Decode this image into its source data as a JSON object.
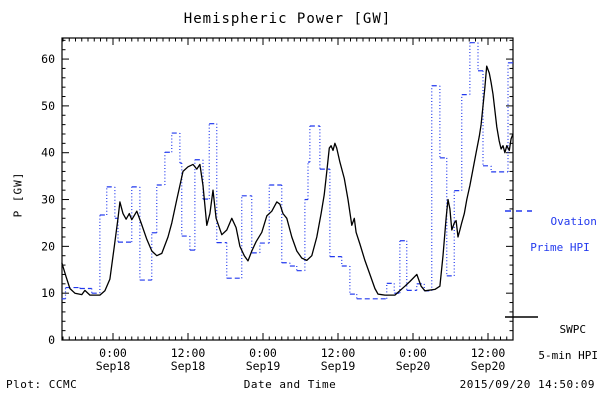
{
  "title": "Hemispheric Power [GW]",
  "colors": {
    "ovation_blue": "#2239ee",
    "swpc_black": "#000000",
    "frame": "#000000"
  },
  "axes": {
    "ylabel": "P [GW]",
    "xlabel": "Date and Time",
    "y_ticks": [
      0,
      10,
      20,
      30,
      40,
      50,
      60
    ],
    "y_minor_step": 2,
    "x_minor_step_hours": 1,
    "x_major_ticks": [
      {
        "t": 0,
        "time": "0:00",
        "date": "Sep18"
      },
      {
        "t": 12,
        "time": "12:00",
        "date": "Sep18"
      },
      {
        "t": 24,
        "time": "0:00",
        "date": "Sep19"
      },
      {
        "t": 36,
        "time": "12:00",
        "date": "Sep19"
      },
      {
        "t": 48,
        "time": "0:00",
        "date": "Sep20"
      },
      {
        "t": 60,
        "time": "12:00",
        "date": "Sep20"
      }
    ]
  },
  "chart_data": {
    "type": "line",
    "title": "Hemispheric Power [GW]",
    "xlabel": "Date and Time",
    "ylabel": "P [GW]",
    "x_unit": "hours since 2015-09-18 00:00 UT",
    "xlim": [
      -8.16,
      64
    ],
    "ylim": [
      0,
      64.5
    ],
    "grid": false,
    "legend_position": "right-outside",
    "series": [
      {
        "name": "Ovation Prime HPI",
        "style": "step-dashed",
        "color": "#2239ee",
        "points": [
          [
            -8.2,
            8.8
          ],
          [
            -7.6,
            11.2
          ],
          [
            -5.3,
            11.0
          ],
          [
            -3.4,
            10.0
          ],
          [
            -2.1,
            26.7
          ],
          [
            -1.0,
            32.7
          ],
          [
            0.3,
            26.0
          ],
          [
            0.8,
            20.9
          ],
          [
            3.0,
            32.7
          ],
          [
            4.3,
            12.8
          ],
          [
            6.2,
            22.9
          ],
          [
            7.0,
            33.1
          ],
          [
            8.3,
            40.1
          ],
          [
            9.4,
            44.2
          ],
          [
            10.7,
            37.8
          ],
          [
            11.0,
            22.2
          ],
          [
            12.3,
            19.2
          ],
          [
            13.1,
            38.5
          ],
          [
            14.4,
            30.1
          ],
          [
            15.4,
            46.2
          ],
          [
            16.6,
            20.8
          ],
          [
            18.2,
            13.2
          ],
          [
            20.6,
            30.8
          ],
          [
            22.2,
            18.6
          ],
          [
            23.5,
            20.7
          ],
          [
            25.0,
            33.1
          ],
          [
            27.0,
            16.5
          ],
          [
            28.3,
            15.8
          ],
          [
            29.4,
            14.8
          ],
          [
            30.7,
            30.0
          ],
          [
            31.2,
            38.0
          ],
          [
            31.5,
            45.7
          ],
          [
            33.1,
            36.5
          ],
          [
            34.7,
            17.8
          ],
          [
            36.6,
            15.8
          ],
          [
            37.9,
            9.8
          ],
          [
            39.0,
            8.8
          ],
          [
            43.8,
            12.1
          ],
          [
            45.0,
            10.0
          ],
          [
            45.9,
            21.2
          ],
          [
            47.0,
            10.6
          ],
          [
            48.6,
            12.0
          ],
          [
            49.8,
            10.5
          ],
          [
            51.0,
            54.3
          ],
          [
            52.3,
            38.9
          ],
          [
            53.4,
            13.7
          ],
          [
            54.6,
            31.9
          ],
          [
            55.8,
            52.4
          ],
          [
            57.1,
            63.5
          ],
          [
            58.4,
            57.5
          ],
          [
            59.2,
            37.2
          ],
          [
            60.5,
            35.9
          ],
          [
            63.2,
            59.2
          ],
          [
            64.0,
            59.2
          ]
        ]
      },
      {
        "name": "SWPC 5-min HPI",
        "style": "solid",
        "color": "#000000",
        "points": [
          [
            -8.2,
            16.5
          ],
          [
            -7.5,
            13.5
          ],
          [
            -6.9,
            11.0
          ],
          [
            -6.1,
            10.0
          ],
          [
            -5.0,
            9.7
          ],
          [
            -4.5,
            10.6
          ],
          [
            -3.7,
            9.6
          ],
          [
            -2.1,
            9.6
          ],
          [
            -1.3,
            10.5
          ],
          [
            -0.5,
            13.0
          ],
          [
            0.2,
            20.0
          ],
          [
            0.8,
            26.0
          ],
          [
            1.1,
            29.5
          ],
          [
            1.6,
            27.0
          ],
          [
            2.1,
            25.8
          ],
          [
            2.6,
            27.0
          ],
          [
            3.0,
            25.7
          ],
          [
            3.8,
            27.5
          ],
          [
            4.5,
            25.0
          ],
          [
            5.4,
            21.5
          ],
          [
            6.2,
            19.0
          ],
          [
            7.0,
            18.0
          ],
          [
            7.8,
            18.5
          ],
          [
            8.8,
            22.0
          ],
          [
            9.4,
            25.0
          ],
          [
            10.2,
            30.0
          ],
          [
            10.7,
            33.0
          ],
          [
            11.2,
            36.0
          ],
          [
            12.0,
            37.0
          ],
          [
            12.8,
            37.5
          ],
          [
            13.4,
            36.5
          ],
          [
            13.9,
            37.5
          ],
          [
            14.4,
            33.0
          ],
          [
            15.0,
            24.5
          ],
          [
            15.5,
            27.0
          ],
          [
            16.0,
            32.0
          ],
          [
            16.5,
            26.0
          ],
          [
            17.4,
            22.5
          ],
          [
            18.2,
            23.5
          ],
          [
            19.0,
            26.0
          ],
          [
            19.7,
            24.0
          ],
          [
            20.3,
            20.0
          ],
          [
            21.0,
            18.0
          ],
          [
            21.6,
            16.9
          ],
          [
            22.2,
            19.0
          ],
          [
            22.9,
            21.0
          ],
          [
            23.8,
            23.0
          ],
          [
            24.6,
            26.5
          ],
          [
            25.4,
            27.5
          ],
          [
            26.2,
            29.5
          ],
          [
            26.7,
            29.0
          ],
          [
            27.2,
            27.0
          ],
          [
            27.8,
            26.0
          ],
          [
            28.6,
            22.0
          ],
          [
            29.4,
            19.0
          ],
          [
            30.2,
            17.5
          ],
          [
            31.0,
            17.0
          ],
          [
            31.8,
            18.0
          ],
          [
            32.6,
            22.0
          ],
          [
            33.3,
            27.0
          ],
          [
            33.8,
            31.0
          ],
          [
            34.2,
            36.0
          ],
          [
            34.6,
            41.0
          ],
          [
            34.9,
            41.5
          ],
          [
            35.2,
            40.5
          ],
          [
            35.5,
            42.0
          ],
          [
            35.8,
            41.0
          ],
          [
            36.3,
            38.0
          ],
          [
            37.0,
            34.5
          ],
          [
            37.6,
            30.0
          ],
          [
            38.2,
            24.5
          ],
          [
            38.6,
            26.0
          ],
          [
            38.9,
            23.0
          ],
          [
            39.5,
            20.5
          ],
          [
            40.3,
            17.0
          ],
          [
            41.1,
            14.0
          ],
          [
            41.9,
            11.0
          ],
          [
            42.4,
            9.8
          ],
          [
            43.5,
            9.6
          ],
          [
            45.1,
            9.6
          ],
          [
            46.7,
            11.5
          ],
          [
            47.5,
            12.5
          ],
          [
            48.6,
            14.0
          ],
          [
            49.3,
            11.5
          ],
          [
            49.9,
            10.5
          ],
          [
            51.5,
            10.8
          ],
          [
            52.3,
            11.5
          ],
          [
            52.8,
            18.0
          ],
          [
            53.3,
            26.0
          ],
          [
            53.6,
            30.0
          ],
          [
            53.9,
            28.0
          ],
          [
            54.2,
            23.5
          ],
          [
            54.6,
            25.0
          ],
          [
            54.9,
            25.5
          ],
          [
            55.2,
            22.0
          ],
          [
            55.5,
            23.5
          ],
          [
            55.8,
            25.0
          ],
          [
            56.2,
            27.0
          ],
          [
            56.6,
            30.0
          ],
          [
            57.1,
            33.0
          ],
          [
            57.6,
            36.5
          ],
          [
            58.1,
            40.0
          ],
          [
            58.6,
            43.5
          ],
          [
            58.9,
            46.0
          ],
          [
            59.2,
            50.0
          ],
          [
            59.5,
            54.0
          ],
          [
            59.8,
            58.5
          ],
          [
            60.2,
            57.0
          ],
          [
            60.5,
            55.0
          ],
          [
            60.8,
            52.5
          ],
          [
            61.1,
            49.0
          ],
          [
            61.4,
            45.5
          ],
          [
            61.8,
            42.5
          ],
          [
            62.1,
            40.8
          ],
          [
            62.4,
            41.5
          ],
          [
            62.7,
            40.0
          ],
          [
            63.0,
            41.5
          ],
          [
            63.4,
            40.5
          ],
          [
            63.7,
            43.0
          ],
          [
            64.0,
            44.0
          ]
        ]
      }
    ]
  },
  "legend": {
    "ovation": {
      "line1": "Ovation",
      "line2": "Prime HPI"
    },
    "swpc": {
      "line1": "SWPC",
      "line2": "5-min HPI"
    }
  },
  "footer": {
    "left": "Plot: CCMC",
    "right": "2015/09/20 14:50:09"
  }
}
